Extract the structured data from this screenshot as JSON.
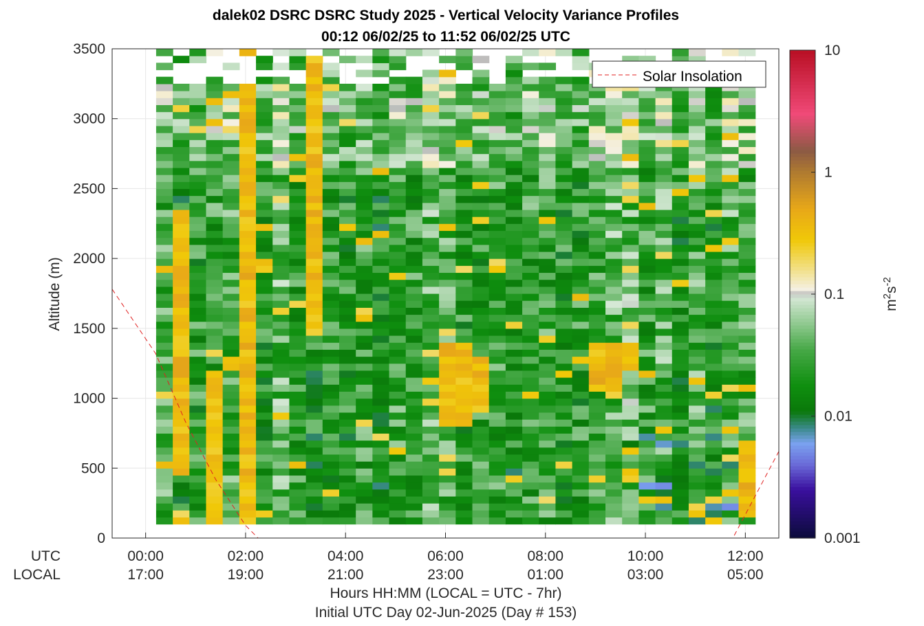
{
  "chart_data": {
    "type": "heatmap",
    "title": "dalek02 DSRC DSRC Study 2025 - Vertical Velocity Variance Profiles",
    "subtitle": "00:12 06/02/25 to 11:52 06/02/25  UTC",
    "ylabel": "Altitude (m)",
    "xlabel": "Hours HH:MM  (LOCAL = UTC - 7hr)",
    "xlabel2": "Initial UTC Day 02-Jun-2025 (Day # 153)",
    "xlim_hours_utc": [
      -0.67,
      12.67
    ],
    "ylim": [
      0,
      3500
    ],
    "grid": true,
    "x_row_labels": {
      "utc": "UTC",
      "local": "LOCAL"
    },
    "x_ticks": [
      {
        "hour": 0,
        "utc": "00:00",
        "local": "17:00"
      },
      {
        "hour": 2,
        "utc": "02:00",
        "local": "19:00"
      },
      {
        "hour": 4,
        "utc": "04:00",
        "local": "21:00"
      },
      {
        "hour": 6,
        "utc": "06:00",
        "local": "23:00"
      },
      {
        "hour": 8,
        "utc": "08:00",
        "local": "01:00"
      },
      {
        "hour": 10,
        "utc": "10:00",
        "local": "03:00"
      },
      {
        "hour": 12,
        "utc": "12:00",
        "local": "05:00"
      }
    ],
    "y_ticks": [
      {
        "value": 0,
        "label": "0"
      },
      {
        "value": 500,
        "label": "500"
      },
      {
        "value": 1000,
        "label": "1000"
      },
      {
        "value": 1500,
        "label": "1500"
      },
      {
        "value": 2000,
        "label": "2000"
      },
      {
        "value": 2500,
        "label": "2500"
      },
      {
        "value": 3000,
        "label": "3000"
      },
      {
        "value": 3500,
        "label": "3500"
      }
    ],
    "colorbar": {
      "scale": "log",
      "range": [
        0.001,
        10
      ],
      "label": "m2s-2",
      "ticks": [
        {
          "value": 0.001,
          "label": "0.001"
        },
        {
          "value": 0.01,
          "label": "0.01"
        },
        {
          "value": 0.1,
          "label": "0.1"
        },
        {
          "value": 1,
          "label": "1"
        },
        {
          "value": 10,
          "label": "10"
        }
      ]
    },
    "time_bins": {
      "start_hour": 0.21,
      "step_hour": 0.333,
      "count": 36
    },
    "altitude_bins": {
      "start": 100,
      "step": 50,
      "count": 68
    },
    "series": [
      {
        "name": "Solar Insolation",
        "style": "dashed",
        "color": "#e02020",
        "x": [
          -0.67,
          0.2,
          0.8,
          1.4,
          2.0,
          2.25,
          11.75,
          12.67
        ],
        "y": [
          1780,
          1320,
          830,
          420,
          90,
          0,
          0,
          620
        ]
      }
    ],
    "color_stops": [
      {
        "v": 0.001,
        "color": "#0b0b3a"
      },
      {
        "v": 0.0025,
        "color": "#3a0f9e"
      },
      {
        "v": 0.004,
        "color": "#6a6ad8"
      },
      {
        "v": 0.006,
        "color": "#7aa2ef"
      },
      {
        "v": 0.008,
        "color": "#3a8a8a"
      },
      {
        "v": 0.011,
        "color": "#0a780a"
      },
      {
        "v": 0.018,
        "color": "#0f8f0f"
      },
      {
        "v": 0.035,
        "color": "#46a846"
      },
      {
        "v": 0.06,
        "color": "#96cc96"
      },
      {
        "v": 0.095,
        "color": "#d6e8d6"
      },
      {
        "v": 0.1,
        "color": "#b8b8b8"
      },
      {
        "v": 0.11,
        "color": "#f4f0e2"
      },
      {
        "v": 0.16,
        "color": "#f2e088"
      },
      {
        "v": 0.28,
        "color": "#f0c808"
      },
      {
        "v": 0.5,
        "color": "#e8a818"
      },
      {
        "v": 1.0,
        "color": "#b07b30"
      },
      {
        "v": 1.5,
        "color": "#8c5a44"
      },
      {
        "v": 3.0,
        "color": "#f04a78"
      },
      {
        "v": 10,
        "color": "#b80f24"
      }
    ]
  }
}
